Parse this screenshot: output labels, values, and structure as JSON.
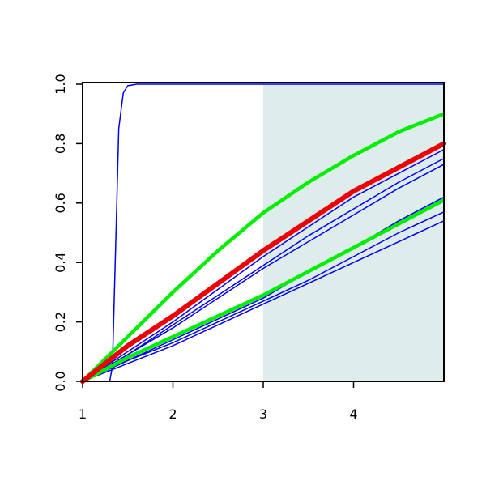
{
  "chart_data": {
    "type": "line",
    "x": [
      1,
      1.5,
      2,
      2.5,
      3,
      3.5,
      4,
      4.5,
      5
    ],
    "xlim": [
      1,
      5
    ],
    "ylim": [
      0,
      1
    ],
    "xticks": [
      1,
      2,
      3,
      4
    ],
    "yticks": [
      {
        "value": 0,
        "label": "0.0"
      },
      {
        "value": 0.2,
        "label": "0.2"
      },
      {
        "value": 0.4,
        "label": "0.4"
      },
      {
        "value": 0.6,
        "label": "0.6"
      },
      {
        "value": 0.8,
        "label": "0.8"
      },
      {
        "value": 1,
        "label": "1.0"
      }
    ],
    "shade": {
      "xlim": [
        3,
        5
      ],
      "color": "#deeceb"
    },
    "series": [
      {
        "color": "#0000ee",
        "width": 1.5,
        "x": [
          1,
          1.3,
          1.33,
          1.37,
          1.4,
          1.45,
          1.5,
          1.6,
          5
        ],
        "values": [
          0,
          0,
          0.05,
          0.5,
          0.85,
          0.97,
          0.995,
          1,
          1
        ]
      },
      {
        "color": "#0000ee",
        "width": 1.5,
        "values": [
          0,
          0.06,
          0.12,
          0.19,
          0.26,
          0.33,
          0.4,
          0.47,
          0.54
        ]
      },
      {
        "color": "#0000ee",
        "width": 1.5,
        "values": [
          0,
          0.07,
          0.13,
          0.2,
          0.27,
          0.34,
          0.42,
          0.5,
          0.57
        ]
      },
      {
        "color": "#0000ee",
        "width": 1.5,
        "values": [
          0,
          0.07,
          0.14,
          0.21,
          0.28,
          0.37,
          0.45,
          0.54,
          0.62
        ]
      },
      {
        "color": "#0000ee",
        "width": 1.5,
        "values": [
          0,
          0.09,
          0.18,
          0.28,
          0.38,
          0.47,
          0.56,
          0.65,
          0.73
        ]
      },
      {
        "color": "#0000ee",
        "width": 1.5,
        "values": [
          0,
          0.09,
          0.19,
          0.29,
          0.39,
          0.49,
          0.58,
          0.67,
          0.75
        ]
      },
      {
        "color": "#0000ee",
        "width": 1.5,
        "values": [
          0,
          0.1,
          0.2,
          0.31,
          0.42,
          0.52,
          0.62,
          0.7,
          0.78
        ]
      },
      {
        "color": "#00ee00",
        "width": 4.5,
        "values": [
          0,
          0.08,
          0.15,
          0.22,
          0.29,
          0.37,
          0.45,
          0.53,
          0.61
        ]
      },
      {
        "color": "#00ee00",
        "width": 4.5,
        "values": [
          0,
          0.15,
          0.3,
          0.44,
          0.567,
          0.67,
          0.76,
          0.84,
          0.9
        ]
      },
      {
        "color": "#ee0000",
        "width": 6,
        "values": [
          0,
          0.12,
          0.22,
          0.33,
          0.44,
          0.54,
          0.64,
          0.72,
          0.8
        ]
      }
    ]
  }
}
